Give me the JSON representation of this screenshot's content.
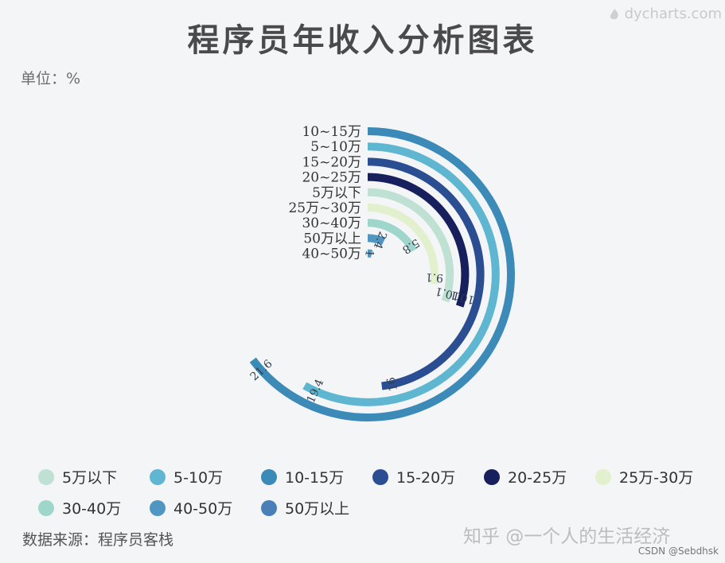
{
  "title": "程序员年收入分析图表",
  "unit": "单位：%",
  "brand": "dycharts.com",
  "source": "数据来源：程序员客栈",
  "watermark": "知乎 @一个人的生活经济",
  "credit": "CSDN @Sebdhsk",
  "chart_data": {
    "type": "radial-bar",
    "unit": "%",
    "max_value": 25,
    "categories": [
      "10-15万",
      "5-10万",
      "15-20万",
      "20-25万",
      "5万以下",
      "25万-30万",
      "30-40万",
      "50万以上",
      "40-50万"
    ],
    "category_labels": [
      "10~15万",
      "5~10万",
      "15~20万",
      "20~25万",
      "5万以下",
      "25万~30万",
      "30~40万",
      "50万以上",
      "40~50万"
    ],
    "values": [
      21.6,
      19.4,
      16.0,
      10.1,
      10.1,
      9.1,
      5.8,
      2.4,
      1.0
    ],
    "value_labels": [
      "21.6",
      "19.4",
      "16",
      "10.1",
      "10.1",
      "9.1",
      "5.8",
      "2.4",
      "1"
    ],
    "colors": [
      "#3b8ab8",
      "#5fb6d0",
      "#2b4e92",
      "#171f5c",
      "#bfe1d3",
      "#e3f0cd",
      "#9fd6cc",
      "#4f97c2",
      "#4f97c2"
    ]
  },
  "legend": [
    {
      "label": "5万以下",
      "color": "#bfe1d3"
    },
    {
      "label": "5-10万",
      "color": "#5fb6d0"
    },
    {
      "label": "10-15万",
      "color": "#3b8ab8"
    },
    {
      "label": "15-20万",
      "color": "#2b4e92"
    },
    {
      "label": "20-25万",
      "color": "#171f5c"
    },
    {
      "label": "25万-30万",
      "color": "#e3f0cd"
    },
    {
      "label": "30-40万",
      "color": "#9fd6cc"
    },
    {
      "label": "40-50万",
      "color": "#4f97c2"
    },
    {
      "label": "50万以上",
      "color": "#4a7fb8"
    }
  ]
}
